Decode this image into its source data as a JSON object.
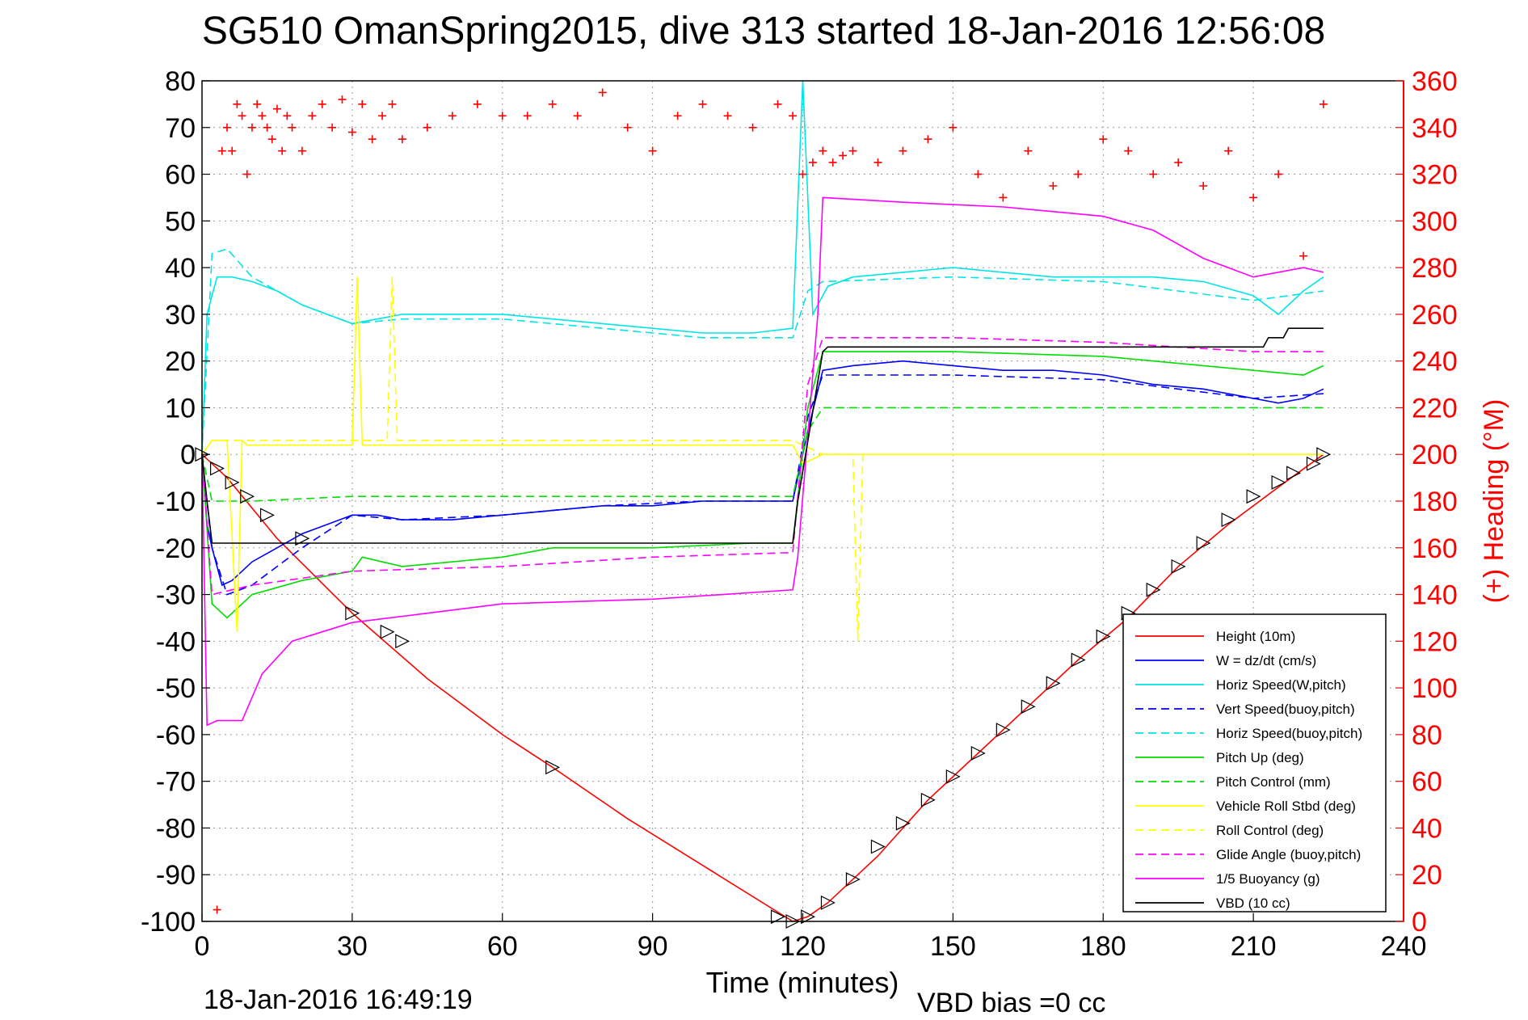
{
  "chart_data": {
    "type": "line",
    "title": "SG510 OmanSpring2015, dive 313 started 18-Jan-2016 12:56:08",
    "xlabel": "Time (minutes)",
    "ylabel_right": "(+) Heading (°M)",
    "timestamp": "18-Jan-2016 16:49:19",
    "vbd_note": "VBD bias =0 cc",
    "xlim": [
      0,
      240
    ],
    "ylim": [
      -100,
      80
    ],
    "ylim_right": [
      0,
      360
    ],
    "grid": true,
    "legend_position": "bottom-right",
    "x_ticks": [
      "0",
      "30",
      "60",
      "90",
      "120",
      "150",
      "180",
      "210",
      "240"
    ],
    "y_ticks": [
      "80",
      "70",
      "60",
      "50",
      "40",
      "30",
      "20",
      "10",
      "0",
      "-10",
      "-20",
      "-30",
      "-40",
      "-50",
      "-60",
      "-70",
      "-80",
      "-90",
      "-100"
    ],
    "y_right_ticks": [
      "360",
      "340",
      "320",
      "300",
      "280",
      "260",
      "240",
      "220",
      "200",
      "180",
      "160",
      "140",
      "120",
      "100",
      "80",
      "60",
      "40",
      "20",
      "0"
    ],
    "colors": {
      "height": "#ff0000",
      "w": "#0000ff",
      "horiz_speed": "#00e5e5",
      "pitch": "#00dd00",
      "roll": "#ffff00",
      "glide": "#ff00ff",
      "buoyancy": "#ff00ff",
      "vbd": "#000000",
      "heading": "#ff0000"
    },
    "series": [
      {
        "key": "height",
        "name": "Height (10m)",
        "style": "solid",
        "axis": "left",
        "x": [
          0,
          5,
          15,
          30,
          45,
          60,
          70,
          85,
          100,
          118,
          121,
          125,
          135,
          145,
          155,
          165,
          175,
          185,
          195,
          205,
          215,
          224
        ],
        "y": [
          0,
          -5,
          -18,
          -34,
          -48,
          -60,
          -67,
          -78,
          -88,
          -100,
          -99,
          -96,
          -86,
          -74,
          -64,
          -54,
          -44,
          -35,
          -24,
          -15,
          -7,
          0
        ]
      },
      {
        "key": "w",
        "name": "W = dz/dt (cm/s)",
        "style": "solid",
        "axis": "left",
        "x": [
          0,
          1,
          2,
          4,
          6,
          10,
          15,
          20,
          25,
          30,
          35,
          40,
          50,
          60,
          70,
          80,
          90,
          100,
          110,
          118,
          121,
          124,
          130,
          140,
          150,
          160,
          170,
          180,
          190,
          200,
          210,
          215,
          220,
          224
        ],
        "y": [
          0,
          -15,
          -20,
          -28,
          -27,
          -23,
          -20,
          -17,
          -15,
          -13,
          -13,
          -14,
          -14,
          -13,
          -12,
          -11,
          -11,
          -10,
          -10,
          -10,
          5,
          18,
          19,
          20,
          19,
          18,
          18,
          17,
          15,
          14,
          12,
          11,
          12,
          14
        ]
      },
      {
        "key": "horiz_speed",
        "name": "Horiz Speed(W,pitch)",
        "style": "solid",
        "axis": "left",
        "x": [
          0,
          1,
          3,
          6,
          10,
          15,
          20,
          25,
          30,
          35,
          40,
          50,
          60,
          70,
          80,
          90,
          100,
          110,
          118,
          120,
          122,
          125,
          130,
          140,
          150,
          160,
          170,
          180,
          190,
          200,
          210,
          215,
          220,
          224
        ],
        "y": [
          0,
          30,
          38,
          38,
          37,
          35,
          32,
          30,
          28,
          29,
          30,
          30,
          30,
          29,
          28,
          27,
          26,
          26,
          27,
          80,
          30,
          36,
          38,
          39,
          40,
          39,
          38,
          38,
          38,
          37,
          34,
          30,
          35,
          38
        ]
      },
      {
        "key": "vert_speed",
        "name": "Vert Speed(buoy,pitch)",
        "style": "dashed",
        "axis": "left",
        "x": [
          0,
          2,
          5,
          10,
          20,
          30,
          40,
          60,
          80,
          100,
          118,
          121,
          124,
          150,
          180,
          210,
          224
        ],
        "y": [
          0,
          -20,
          -30,
          -28,
          -20,
          -13,
          -14,
          -13,
          -11,
          -10,
          -10,
          8,
          17,
          17,
          16,
          12,
          13
        ]
      },
      {
        "key": "horiz_speed_buoy",
        "name": "Horiz Speed(buoy,pitch)",
        "style": "dashed",
        "axis": "left",
        "x": [
          0,
          2,
          5,
          10,
          20,
          30,
          40,
          60,
          80,
          100,
          118,
          121,
          124,
          150,
          180,
          210,
          224
        ],
        "y": [
          0,
          43,
          44,
          38,
          32,
          28,
          29,
          29,
          27,
          25,
          25,
          35,
          37,
          38,
          37,
          33,
          35
        ]
      },
      {
        "key": "pitch",
        "name": "Pitch Up (deg)",
        "style": "solid",
        "axis": "left",
        "x": [
          0,
          2,
          5,
          10,
          20,
          30,
          32,
          40,
          60,
          70,
          90,
          110,
          118,
          121,
          124,
          150,
          180,
          210,
          220,
          224
        ],
        "y": [
          0,
          -32,
          -35,
          -30,
          -27,
          -25,
          -22,
          -24,
          -22,
          -20,
          -20,
          -19,
          -19,
          10,
          22,
          22,
          21,
          18,
          17,
          19
        ]
      },
      {
        "key": "pitch_control",
        "name": "Pitch Control (mm)",
        "style": "dashed",
        "axis": "left",
        "x": [
          0,
          2,
          10,
          30,
          60,
          118,
          121,
          124,
          150,
          180,
          210,
          224
        ],
        "y": [
          0,
          -10,
          -10,
          -9,
          -9,
          -9,
          5,
          10,
          10,
          10,
          10,
          10
        ]
      },
      {
        "key": "roll",
        "name": "Vehicle Roll Stbd (deg)",
        "style": "solid",
        "axis": "left",
        "x": [
          0,
          2,
          5,
          7,
          8,
          9,
          30,
          31,
          32,
          60,
          70,
          118,
          120,
          124,
          130,
          150,
          180,
          210,
          224
        ],
        "y": [
          0,
          3,
          3,
          -38,
          3,
          2,
          2,
          38,
          2,
          2,
          2,
          2,
          -2,
          0,
          0,
          0,
          0,
          0,
          0
        ]
      },
      {
        "key": "roll_control",
        "name": "Roll Control (deg)",
        "style": "dashed",
        "axis": "left",
        "x": [
          0,
          2,
          10,
          30,
          37,
          38,
          39,
          60,
          118,
          124,
          130,
          131,
          132,
          224
        ],
        "y": [
          0,
          3,
          3,
          3,
          3,
          38,
          3,
          3,
          3,
          0,
          0,
          -40,
          0,
          0
        ]
      },
      {
        "key": "glide",
        "name": "Glide Angle (buoy,pitch)",
        "style": "dashed",
        "axis": "left",
        "x": [
          0,
          2,
          10,
          30,
          60,
          90,
          118,
          121,
          124,
          150,
          180,
          210,
          224
        ],
        "y": [
          0,
          -30,
          -28,
          -25,
          -24,
          -22,
          -21,
          15,
          25,
          25,
          24,
          22,
          22
        ]
      },
      {
        "key": "buoyancy",
        "name": "1/5 Buoyancy (g)",
        "style": "solid",
        "axis": "left",
        "x": [
          0,
          1,
          3,
          8,
          12,
          18,
          30,
          45,
          60,
          90,
          118,
          119,
          123,
          124,
          140,
          160,
          180,
          190,
          200,
          210,
          220,
          224
        ],
        "y": [
          0,
          -58,
          -57,
          -57,
          -47,
          -40,
          -36,
          -34,
          -32,
          -31,
          -29,
          -22,
          30,
          55,
          54,
          53,
          51,
          48,
          42,
          38,
          40,
          39
        ]
      },
      {
        "key": "vbd",
        "name": "VBD (10 cc)",
        "style": "solid",
        "axis": "left",
        "x": [
          0,
          1,
          2,
          118,
          119,
          124,
          125,
          190,
          212,
          213,
          216,
          217,
          224
        ],
        "y": [
          0,
          -10,
          -19,
          -19,
          -10,
          22,
          23,
          23,
          23,
          25,
          25,
          27,
          27
        ]
      }
    ],
    "heading_points": {
      "name": "Heading",
      "axis": "right",
      "x": [
        3,
        4,
        5,
        6,
        7,
        8,
        9,
        10,
        11,
        12,
        13,
        14,
        15,
        16,
        17,
        18,
        20,
        22,
        24,
        26,
        28,
        30,
        32,
        34,
        36,
        38,
        40,
        45,
        50,
        55,
        60,
        65,
        70,
        75,
        80,
        85,
        90,
        95,
        100,
        105,
        110,
        115,
        118,
        120,
        122,
        124,
        126,
        128,
        130,
        135,
        140,
        145,
        150,
        155,
        160,
        165,
        170,
        175,
        180,
        185,
        190,
        195,
        200,
        205,
        210,
        215,
        220,
        224
      ],
      "y": [
        5,
        330,
        340,
        330,
        350,
        345,
        320,
        340,
        350,
        345,
        340,
        335,
        348,
        330,
        345,
        340,
        330,
        345,
        350,
        340,
        352,
        338,
        350,
        335,
        345,
        350,
        335,
        340,
        345,
        350,
        345,
        345,
        350,
        345,
        355,
        340,
        330,
        345,
        350,
        345,
        340,
        350,
        345,
        320,
        325,
        330,
        325,
        328,
        330,
        325,
        330,
        335,
        340,
        320,
        310,
        330,
        315,
        320,
        335,
        330,
        320,
        325,
        315,
        330,
        310,
        320,
        285,
        350
      ]
    },
    "markers": {
      "x": [
        0,
        3,
        6,
        9,
        13,
        20,
        30,
        37,
        40,
        70,
        115,
        118,
        121,
        125,
        130,
        135,
        140,
        145,
        150,
        155,
        160,
        165,
        170,
        175,
        180,
        185,
        190,
        195,
        200,
        205,
        210,
        215,
        218,
        222,
        224
      ],
      "y": [
        0,
        -3,
        -6,
        -9,
        -13,
        -18,
        -34,
        -38,
        -40,
        -67,
        -99,
        -100,
        -99,
        -96,
        -91,
        -84,
        -79,
        -74,
        -69,
        -64,
        -59,
        -54,
        -49,
        -44,
        -39,
        -34,
        -29,
        -24,
        -19,
        -14,
        -9,
        -6,
        -4,
        -2,
        0
      ]
    }
  }
}
